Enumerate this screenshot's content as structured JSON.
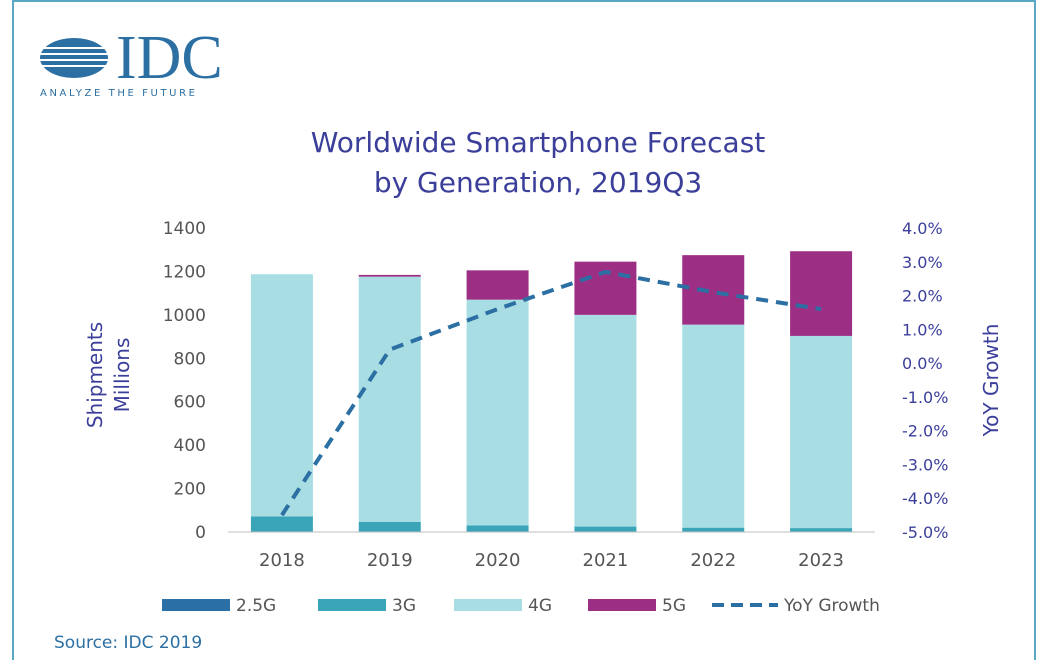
{
  "logo": {
    "name": "IDC",
    "tagline": "ANALYZE THE FUTURE"
  },
  "source": "Source: IDC 2019",
  "colors": {
    "g25": "#2a6fa6",
    "g3": "#3aa5b8",
    "g4": "#a8dde3",
    "g5": "#9c2f84",
    "yoy": "#2b6fa3",
    "title": "#3b3f9a",
    "axis_text": "#555555"
  },
  "chart_data": {
    "type": "bar",
    "stacked": true,
    "title": "Worldwide Smartphone Forecast",
    "subtitle": "by Generation, 2019Q3",
    "categories": [
      "2018",
      "2019",
      "2020",
      "2021",
      "2022",
      "2023"
    ],
    "ylabel": "Shipments\nMillions",
    "ylabel_lines": [
      "Shipments",
      "Millions"
    ],
    "y2label": "YoY Growth",
    "ylim": [
      0,
      1400
    ],
    "yticks": [
      0,
      200,
      400,
      600,
      800,
      1000,
      1200,
      1400
    ],
    "y2lim": [
      -5.0,
      4.0
    ],
    "y2ticks": [
      "-5.0%",
      "-4.0%",
      "-3.0%",
      "-2.0%",
      "-1.0%",
      "0.0%",
      "1.0%",
      "2.0%",
      "3.0%",
      "4.0%"
    ],
    "y2tick_values": [
      -5,
      -4,
      -3,
      -2,
      -1,
      0,
      1,
      2,
      3,
      4
    ],
    "series": [
      {
        "name": "2.5G",
        "color_key": "g25",
        "values": [
          2,
          1,
          0,
          0,
          0,
          0
        ]
      },
      {
        "name": "3G",
        "color_key": "g3",
        "values": [
          70,
          45,
          30,
          25,
          20,
          18
        ]
      },
      {
        "name": "4G",
        "color_key": "g4",
        "values": [
          1115,
          1130,
          1040,
          975,
          935,
          885
        ]
      },
      {
        "name": "5G",
        "color_key": "g5",
        "values": [
          0,
          8,
          135,
          245,
          320,
          390
        ]
      }
    ],
    "line_series": {
      "name": "YoY Growth",
      "axis": "right",
      "values": [
        -4.5,
        0.4,
        1.6,
        2.7,
        2.1,
        1.6
      ]
    },
    "legend": [
      "2.5G",
      "3G",
      "4G",
      "5G",
      "YoY Growth"
    ],
    "legend_position": "bottom",
    "grid": false
  }
}
